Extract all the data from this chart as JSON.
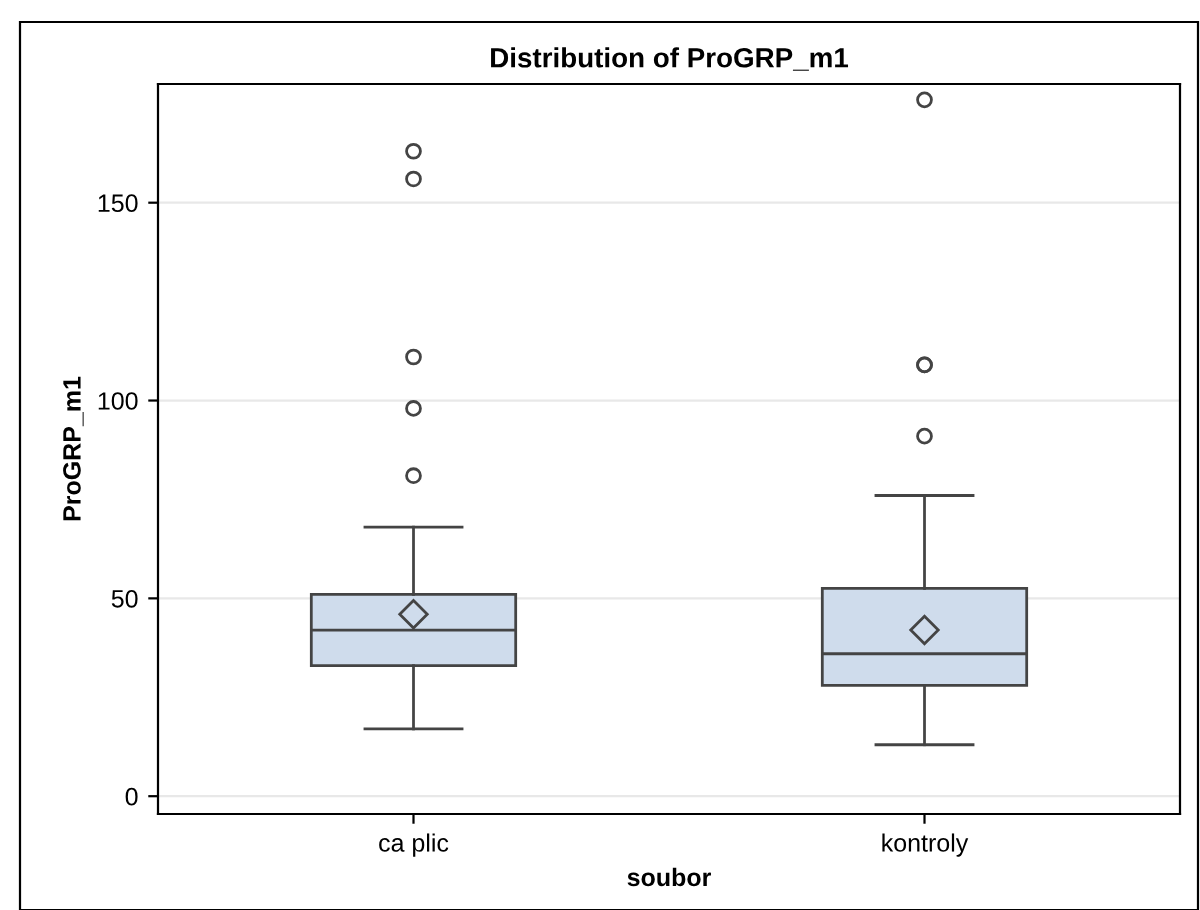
{
  "chart_data": {
    "type": "box",
    "title": "Distribution of ProGRP_m1",
    "xlabel": "soubor",
    "ylabel": "ProGRP_m1",
    "categories": [
      "ca plic",
      "kontroly"
    ],
    "color": "#cfdcec",
    "boxes": [
      {
        "low": 17,
        "q1": 33,
        "median": 42,
        "q3": 51,
        "high": 68,
        "mean": 46,
        "outliers": [
          81,
          98,
          111,
          156,
          163
        ]
      },
      {
        "low": 13,
        "q1": 28,
        "median": 36,
        "q3": 52.5,
        "high": 76,
        "mean": 42,
        "outliers": [
          91,
          109,
          109,
          176
        ]
      }
    ],
    "ylim": [
      -4.5,
      180
    ],
    "yticks": [
      0,
      50,
      100,
      150
    ],
    "grid": "y"
  }
}
